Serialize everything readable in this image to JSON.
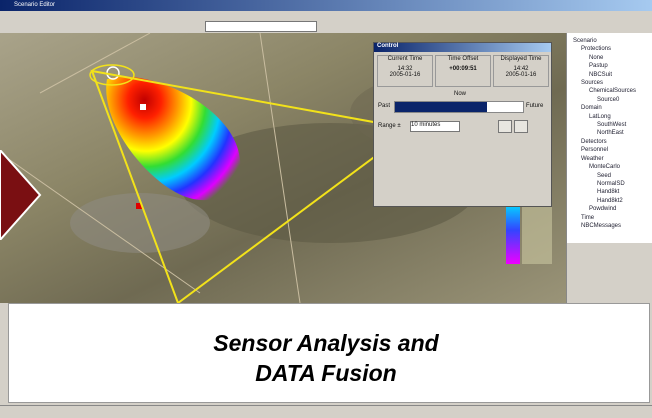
{
  "window": {
    "title": "Scenario Editor"
  },
  "control": {
    "title": "Control",
    "current_time_label": "Current Time",
    "current_time": "14:32",
    "current_date": "2005-01-16",
    "offset_label": "Time Offset",
    "offset": "+00:09:51",
    "displayed_label": "Displayed Time",
    "displayed_time": "14:42",
    "displayed_date": "2005-01-16",
    "now": "Now",
    "past": "Past",
    "future": "Future",
    "range_label": "Range ±",
    "range": "10 minutes"
  },
  "tree": [
    "Scenario",
    "Protections",
    "None",
    "Pastup",
    "NBCSuit",
    "Sources",
    "ChemicalSources",
    "Source0",
    "Domain",
    "LatLong",
    "SouthWest",
    "NorthEast",
    "Detectors",
    "Personnel",
    "Weather",
    "MonteCarlo",
    "Seed",
    "NormalSD",
    "Hand8kt",
    "Hand8kt2",
    "Powdwind",
    "Time",
    "NBCMessages"
  ],
  "caption": [
    "Sensor Analysis and",
    "DATA Fusion"
  ]
}
